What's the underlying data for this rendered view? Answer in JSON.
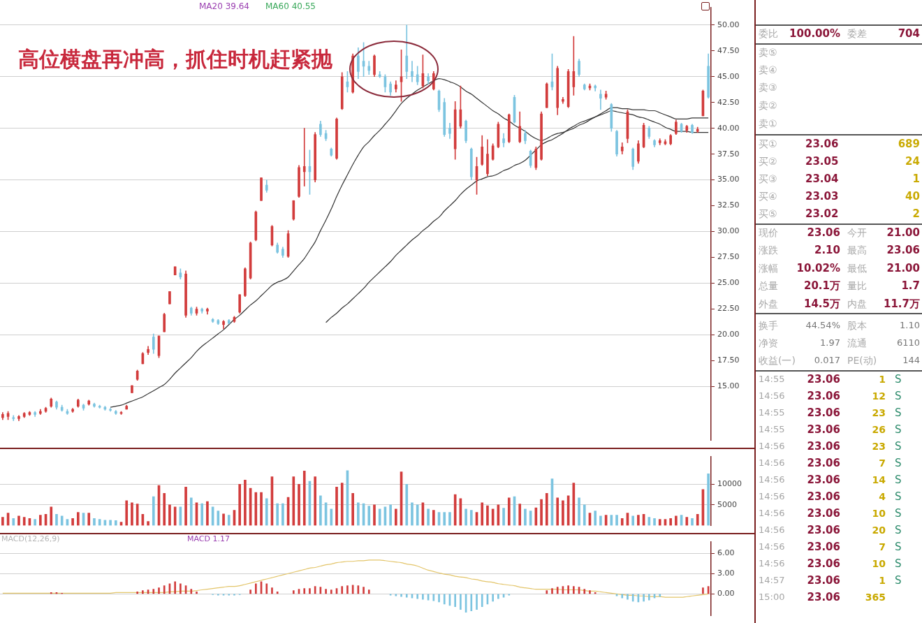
{
  "chart_data": [
    {
      "type": "candlestick",
      "categories": [
        null,
        null,
        null,
        null,
        null,
        null,
        null,
        null,
        null,
        null,
        null,
        null,
        null,
        null,
        null,
        null,
        null,
        null,
        null,
        null,
        null,
        null,
        null,
        null,
        null,
        null,
        null,
        null,
        null,
        null,
        null,
        null,
        null,
        null,
        null,
        null,
        null,
        null,
        null,
        null,
        null,
        null,
        null,
        null,
        null,
        null,
        null,
        null,
        null,
        null,
        null,
        null,
        null,
        null,
        null,
        null,
        null,
        null,
        null,
        null,
        null,
        null,
        null,
        null,
        null,
        null,
        null,
        null,
        null,
        null,
        null,
        null,
        null,
        null,
        null,
        null,
        null,
        null,
        null,
        null,
        null,
        null,
        null,
        null,
        null,
        null,
        null,
        null,
        null,
        null,
        null,
        null,
        null,
        null,
        null,
        null,
        null,
        null,
        null,
        null,
        null,
        null,
        null,
        null,
        null,
        null,
        null,
        null,
        null,
        null,
        null,
        null,
        null,
        null,
        null,
        null,
        null,
        null,
        null,
        null,
        null,
        null,
        null,
        null,
        null,
        null,
        null,
        null,
        null,
        null,
        null,
        null
      ],
      "ohlc": [
        [
          12.0,
          12.5,
          11.8,
          12.3
        ],
        [
          12.1,
          12.6,
          11.8,
          12.4
        ],
        [
          12.0,
          12.2,
          11.7,
          11.9
        ],
        [
          11.9,
          12.2,
          11.7,
          12.1
        ],
        [
          12.1,
          12.5,
          12.0,
          12.4
        ],
        [
          12.3,
          12.6,
          12.2,
          12.5
        ],
        [
          12.5,
          12.6,
          12.1,
          12.3
        ],
        [
          12.4,
          12.8,
          12.3,
          12.6
        ],
        [
          12.6,
          13.0,
          12.5,
          12.9
        ],
        [
          13.1,
          13.9,
          13.0,
          13.8
        ],
        [
          13.5,
          13.6,
          12.8,
          13.0
        ],
        [
          13.0,
          13.2,
          12.6,
          12.7
        ],
        [
          12.6,
          12.8,
          12.3,
          12.4
        ],
        [
          12.6,
          12.9,
          12.5,
          12.8
        ],
        [
          13.1,
          13.8,
          13.0,
          13.7
        ],
        [
          13.2,
          13.3,
          12.7,
          12.9
        ],
        [
          13.3,
          13.7,
          13.2,
          13.6
        ],
        [
          13.3,
          13.4,
          13.0,
          13.1
        ],
        [
          13.1,
          13.2,
          12.9,
          13.0
        ],
        [
          13.0,
          13.1,
          12.7,
          12.8
        ],
        [
          12.8,
          12.9,
          12.6,
          12.7
        ],
        [
          12.6,
          12.7,
          12.3,
          12.4
        ],
        [
          12.4,
          12.6,
          12.3,
          12.5
        ],
        [
          12.8,
          13.2,
          12.8,
          13.1
        ],
        [
          14.4,
          15.1,
          14.4,
          15.1
        ],
        [
          15.7,
          16.6,
          15.6,
          16.5
        ],
        [
          17.2,
          18.3,
          17.2,
          18.2
        ],
        [
          18.3,
          18.9,
          18.1,
          18.6
        ],
        [
          19.8,
          20.1,
          18.2,
          18.6
        ],
        [
          18.0,
          19.9,
          17.8,
          19.9
        ],
        [
          20.3,
          22.1,
          20.3,
          22.0
        ],
        [
          23.0,
          24.2,
          23.0,
          24.2
        ],
        [
          25.8,
          26.6,
          25.8,
          26.6
        ],
        [
          26.0,
          26.4,
          25.4,
          25.6
        ],
        [
          21.9,
          26.2,
          21.7,
          25.9
        ],
        [
          22.6,
          22.7,
          21.9,
          22.1
        ],
        [
          22.1,
          22.7,
          21.9,
          22.5
        ],
        [
          22.5,
          22.6,
          22.1,
          22.3
        ],
        [
          22.3,
          22.6,
          22.0,
          22.5
        ],
        [
          21.5,
          21.6,
          21.2,
          21.3
        ],
        [
          21.4,
          21.5,
          21.0,
          21.1
        ],
        [
          21.0,
          21.4,
          20.6,
          21.3
        ],
        [
          21.4,
          21.5,
          21.1,
          21.1
        ],
        [
          21.3,
          21.8,
          21.2,
          21.7
        ],
        [
          22.2,
          23.9,
          22.1,
          23.9
        ],
        [
          23.8,
          26.5,
          23.7,
          26.4
        ],
        [
          25.5,
          29.0,
          25.4,
          28.9
        ],
        [
          29.2,
          32.0,
          29.1,
          31.9
        ],
        [
          33.0,
          35.2,
          33.0,
          35.2
        ],
        [
          34.5,
          35.0,
          33.8,
          34.0
        ],
        [
          28.7,
          30.6,
          28.6,
          30.5
        ],
        [
          28.7,
          28.9,
          27.9,
          28.0
        ],
        [
          28.3,
          28.5,
          27.5,
          27.7
        ],
        [
          27.6,
          30.1,
          27.5,
          29.8
        ],
        [
          31.2,
          33.0,
          31.1,
          33.0
        ],
        [
          33.4,
          36.4,
          33.3,
          36.2
        ],
        [
          35.8,
          40.0,
          34.4,
          36.3
        ],
        [
          36.3,
          37.9,
          33.6,
          35.8
        ],
        [
          35.0,
          39.6,
          34.8,
          39.4
        ],
        [
          40.4,
          40.7,
          39.2,
          39.4
        ],
        [
          39.5,
          39.8,
          38.8,
          39.0
        ],
        [
          38.0,
          38.1,
          37.3,
          37.4
        ],
        [
          37.1,
          41.0,
          37.0,
          40.9
        ],
        [
          41.9,
          45.4,
          41.8,
          45.0
        ],
        [
          44.5,
          45.5,
          43.5,
          44.0
        ],
        [
          43.5,
          47.2,
          43.4,
          47.0
        ],
        [
          47.0,
          47.8,
          44.8,
          45.5
        ],
        [
          46.5,
          48.3,
          45.0,
          46.0
        ],
        [
          46.0,
          46.5,
          45.2,
          45.6
        ],
        [
          45.2,
          47.1,
          45.0,
          47.0
        ],
        [
          45.2,
          45.5,
          44.9,
          45.0
        ],
        [
          45.0,
          45.2,
          43.5,
          44.0
        ],
        [
          44.3,
          44.5,
          43.2,
          43.5
        ],
        [
          43.8,
          44.6,
          43.5,
          44.2
        ],
        [
          44.5,
          47.6,
          42.6,
          45.0
        ],
        [
          47.0,
          50.0,
          44.8,
          45.5
        ],
        [
          45.5,
          46.5,
          44.5,
          45.0
        ],
        [
          45.2,
          46.0,
          44.2,
          44.5
        ],
        [
          44.1,
          47.1,
          43.9,
          45.3
        ],
        [
          45.0,
          45.3,
          44.3,
          44.6
        ],
        [
          43.8,
          45.5,
          43.7,
          45.3
        ],
        [
          43.6,
          43.7,
          41.6,
          41.8
        ],
        [
          42.5,
          42.9,
          39.2,
          39.4
        ],
        [
          40.0,
          40.5,
          39.0,
          39.5
        ],
        [
          38.0,
          42.6,
          37.0,
          41.8
        ],
        [
          40.2,
          44.1,
          40.0,
          41.8
        ],
        [
          40.7,
          40.8,
          38.6,
          38.8
        ],
        [
          38.0,
          38.1,
          35.0,
          35.3
        ],
        [
          35.0,
          37.2,
          33.6,
          36.3
        ],
        [
          36.5,
          39.3,
          36.4,
          38.2
        ],
        [
          35.6,
          38.9,
          35.4,
          37.5
        ],
        [
          37.0,
          38.5,
          36.9,
          38.3
        ],
        [
          38.2,
          40.6,
          38.1,
          40.4
        ],
        [
          39.0,
          39.5,
          38.2,
          38.6
        ],
        [
          38.7,
          41.4,
          38.6,
          41.3
        ],
        [
          43.0,
          43.2,
          40.5,
          40.6
        ],
        [
          38.7,
          41.6,
          38.6,
          40.2
        ],
        [
          39.5,
          39.8,
          38.5,
          38.8
        ],
        [
          37.8,
          37.9,
          36.2,
          36.4
        ],
        [
          36.2,
          38.2,
          36.0,
          38.0
        ],
        [
          37.0,
          41.6,
          36.9,
          41.4
        ],
        [
          42.0,
          44.4,
          42.0,
          44.3
        ],
        [
          44.5,
          47.2,
          43.7,
          44.0
        ],
        [
          42.0,
          46.0,
          41.3,
          45.8
        ],
        [
          42.6,
          43.0,
          42.4,
          42.8
        ],
        [
          42.1,
          45.7,
          42.0,
          45.5
        ],
        [
          44.0,
          48.9,
          43.2,
          45.5
        ],
        [
          46.5,
          46.7,
          45.0,
          45.2
        ],
        [
          44.2,
          44.3,
          43.7,
          43.8
        ],
        [
          43.9,
          44.3,
          43.7,
          44.1
        ],
        [
          44.1,
          44.2,
          43.6,
          43.9
        ],
        [
          43.3,
          43.7,
          41.8,
          42.9
        ],
        [
          43.0,
          43.6,
          42.8,
          43.3
        ],
        [
          42.3,
          42.4,
          39.7,
          40.0
        ],
        [
          39.7,
          39.8,
          37.3,
          37.5
        ],
        [
          37.8,
          38.6,
          37.5,
          38.2
        ],
        [
          39.0,
          41.8,
          38.6,
          41.6
        ],
        [
          38.0,
          38.1,
          36.0,
          36.3
        ],
        [
          36.8,
          38.8,
          36.6,
          38.5
        ],
        [
          38.2,
          40.5,
          38.1,
          40.3
        ],
        [
          40.0,
          40.2,
          39.0,
          39.2
        ],
        [
          38.8,
          38.9,
          38.2,
          38.4
        ],
        [
          38.6,
          39.0,
          38.4,
          38.8
        ],
        [
          38.5,
          38.9,
          38.4,
          38.7
        ],
        [
          38.5,
          39.4,
          38.4,
          39.3
        ],
        [
          39.5,
          40.8,
          39.4,
          40.6
        ],
        [
          40.4,
          40.5,
          39.6,
          39.7
        ],
        [
          39.8,
          40.3,
          39.6,
          40.2
        ],
        [
          40.3,
          40.4,
          39.5,
          39.6
        ],
        [
          39.7,
          40.1,
          39.6,
          39.9
        ],
        [
          41.2,
          43.7,
          41.2,
          43.6
        ],
        [
          46.0,
          47.2,
          42.9,
          43.0
        ]
      ],
      "colors": [
        "#d23c3c",
        "#d23c3c",
        "#7cc4e0",
        "#d23c3c",
        "#d23c3c",
        "#d23c3c",
        "#7cc4e0",
        "#d23c3c",
        "#d23c3c",
        "#d23c3c",
        "#7cc4e0",
        "#7cc4e0",
        "#7cc4e0",
        "#d23c3c",
        "#d23c3c",
        "#7cc4e0",
        "#d23c3c",
        "#7cc4e0",
        "#7cc4e0",
        "#7cc4e0",
        "#7cc4e0",
        "#7cc4e0",
        "#d23c3c",
        "#d23c3c",
        "#d23c3c",
        "#d23c3c",
        "#d23c3c",
        "#d23c3c",
        "#7cc4e0",
        "#d23c3c",
        "#d23c3c",
        "#d23c3c",
        "#d23c3c",
        "#7cc4e0",
        "#d23c3c",
        "#7cc4e0",
        "#d23c3c",
        "#7cc4e0",
        "#d23c3c",
        "#7cc4e0",
        "#7cc4e0",
        "#d23c3c",
        "#7cc4e0",
        "#d23c3c",
        "#d23c3c",
        "#d23c3c",
        "#d23c3c",
        "#d23c3c",
        "#d23c3c",
        "#7cc4e0",
        "#d23c3c",
        "#7cc4e0",
        "#7cc4e0",
        "#d23c3c",
        "#d23c3c",
        "#d23c3c",
        "#d23c3c",
        "#7cc4e0",
        "#d23c3c",
        "#7cc4e0",
        "#7cc4e0",
        "#7cc4e0",
        "#d23c3c",
        "#d23c3c",
        "#7cc4e0",
        "#d23c3c",
        "#7cc4e0",
        "#7cc4e0",
        "#7cc4e0",
        "#d23c3c",
        "#7cc4e0",
        "#7cc4e0",
        "#7cc4e0",
        "#d23c3c",
        "#d23c3c",
        "#7cc4e0",
        "#7cc4e0",
        "#7cc4e0",
        "#d23c3c",
        "#7cc4e0",
        "#d23c3c",
        "#7cc4e0",
        "#7cc4e0",
        "#7cc4e0",
        "#d23c3c",
        "#d23c3c",
        "#7cc4e0",
        "#7cc4e0",
        "#d23c3c",
        "#d23c3c",
        "#d23c3c",
        "#d23c3c",
        "#d23c3c",
        "#7cc4e0",
        "#d23c3c",
        "#7cc4e0",
        "#d23c3c",
        "#7cc4e0",
        "#7cc4e0",
        "#d23c3c",
        "#d23c3c",
        "#d23c3c",
        "#7cc4e0",
        "#d23c3c",
        "#d23c3c",
        "#d23c3c",
        "#d23c3c",
        "#7cc4e0",
        "#7cc4e0",
        "#d23c3c",
        "#7cc4e0",
        "#7cc4e0",
        "#d23c3c",
        "#7cc4e0",
        "#7cc4e0",
        "#d23c3c",
        "#d23c3c",
        "#7cc4e0",
        "#d23c3c",
        "#d23c3c",
        "#7cc4e0",
        "#7cc4e0",
        "#d23c3c",
        "#d23c3c",
        "#d23c3c",
        "#d23c3c",
        "#7cc4e0",
        "#d23c3c",
        "#7cc4e0",
        "#d23c3c",
        "#d23c3c",
        "#7cc4e0"
      ],
      "series": [
        {
          "type": "line",
          "color": "#333333",
          "values": [
            null,
            null,
            null,
            null,
            null,
            null,
            null,
            null,
            null,
            null,
            null,
            null,
            null,
            null,
            null,
            null,
            null,
            null,
            null,
            null,
            13.0,
            13.1,
            13.2,
            13.4,
            13.6,
            13.8,
            14.0,
            14.3,
            14.6,
            14.9,
            15.2,
            15.7,
            16.3,
            16.8,
            17.3,
            17.8,
            18.4,
            18.9,
            19.3,
            19.7,
            20.1,
            20.5,
            21.0,
            21.5,
            21.9,
            22.4,
            22.9,
            23.3,
            23.8,
            24.3,
            24.8,
            25.1,
            25.3,
            25.6,
            26.2,
            26.8,
            27.4,
            28.2,
            29.0,
            30.1,
            31.1,
            32.2,
            33.4,
            34.5,
            35.5,
            36.5,
            37.4,
            38.2,
            38.7,
            39.3,
            39.8,
            40.4,
            41.0,
            41.7,
            42.4,
            42.9,
            43.3,
            43.7,
            44.0,
            44.3,
            44.6,
            44.8,
            44.7,
            44.5,
            44.3,
            44.0,
            43.6,
            43.3,
            42.9,
            42.5,
            42.1,
            41.7,
            41.4,
            41.0,
            40.7,
            40.3,
            40.0,
            39.7,
            39.3,
            39.0,
            38.8,
            39.0,
            39.3,
            39.5,
            39.6,
            39.8,
            40.0,
            40.3,
            40.5,
            40.8,
            41.1,
            41.4,
            41.7,
            42.0,
            42.0,
            41.9,
            41.9,
            41.8,
            41.8,
            41.8,
            41.7,
            41.7,
            41.5,
            41.3,
            41.1,
            40.9,
            40.9,
            40.9,
            41.0,
            41.0,
            41.0,
            41.0
          ]
        },
        {
          "type": "line",
          "color": "#333333",
          "values": [
            null,
            null,
            null,
            null,
            null,
            null,
            null,
            null,
            null,
            null,
            null,
            null,
            null,
            null,
            null,
            null,
            null,
            null,
            null,
            null,
            null,
            null,
            null,
            null,
            null,
            null,
            null,
            null,
            null,
            null,
            null,
            null,
            null,
            null,
            null,
            null,
            null,
            null,
            null,
            null,
            null,
            null,
            null,
            null,
            null,
            null,
            null,
            null,
            null,
            null,
            null,
            null,
            null,
            null,
            null,
            null,
            null,
            null,
            null,
            null,
            21.2,
            21.7,
            22.1,
            22.6,
            23.0,
            23.5,
            24.0,
            24.5,
            25.1,
            25.6,
            26.1,
            26.6,
            27.1,
            27.7,
            28.2,
            28.7,
            29.2,
            29.6,
            30.1,
            30.5,
            31.0,
            31.4,
            32.0,
            32.5,
            33.0,
            33.6,
            34.1,
            34.5,
            34.9,
            35.1,
            35.3,
            35.4,
            35.6,
            35.9,
            36.1,
            36.4,
            36.6,
            36.9,
            37.4,
            37.9,
            38.4,
            38.7,
            38.9,
            39.2,
            39.5,
            39.9,
            40.2,
            40.5,
            40.7,
            40.9,
            41.1,
            41.3,
            41.5,
            41.7,
            41.6,
            41.5,
            41.4,
            41.3,
            41.1,
            41.0,
            40.8,
            40.6,
            40.4,
            40.1,
            39.9,
            39.7,
            39.7,
            39.7,
            39.6,
            39.6,
            39.6,
            39.6
          ]
        }
      ],
      "ylim": [
        9.8,
        51.7
      ],
      "yticks": [
        {
          "value": 15,
          "label": "15.00"
        },
        {
          "value": 17.5,
          "label": "17.50"
        },
        {
          "value": 20,
          "label": "20.00"
        },
        {
          "value": 22.5,
          "label": "22.50"
        },
        {
          "value": 25,
          "label": "25.00"
        },
        {
          "value": 27.5,
          "label": "27.50"
        },
        {
          "value": 30,
          "label": "30.00"
        },
        {
          "value": 32.5,
          "label": "32.50"
        },
        {
          "value": 35,
          "label": "35.00"
        },
        {
          "value": 37.5,
          "label": "37.50"
        },
        {
          "value": 40,
          "label": "40.00"
        },
        {
          "value": 42.5,
          "label": "42.50"
        },
        {
          "value": 45,
          "label": "45.00"
        },
        {
          "value": 47.5,
          "label": "47.50"
        },
        {
          "value": 50,
          "label": "50.00"
        }
      ],
      "grid": "y",
      "tick_labels": "y",
      "annotations": [
        "高位横盘再冲高，抓住时机赶紧抛",
        "MA20 39.64",
        "MA60 40.55"
      ]
    },
    {
      "type": "bar",
      "categories": [
        null,
        null,
        null,
        null,
        null,
        null,
        null,
        null,
        null,
        null,
        null,
        null,
        null,
        null,
        null,
        null,
        null,
        null,
        null,
        null,
        null,
        null,
        null,
        null,
        null,
        null,
        null,
        null,
        null,
        null,
        null,
        null,
        null,
        null,
        null,
        null,
        null,
        null,
        null,
        null,
        null,
        null,
        null,
        null,
        null,
        null,
        null,
        null,
        null,
        null,
        null,
        null,
        null,
        null,
        null,
        null,
        null,
        null,
        null,
        null,
        null,
        null,
        null,
        null,
        null,
        null,
        null,
        null,
        null,
        null,
        null,
        null,
        null,
        null,
        null,
        null,
        null,
        null,
        null,
        null,
        null,
        null,
        null,
        null,
        null,
        null,
        null,
        null,
        null,
        null,
        null,
        null,
        null,
        null,
        null,
        null,
        null,
        null,
        null,
        null,
        null,
        null,
        null,
        null,
        null,
        null,
        null,
        null,
        null,
        null,
        null,
        null,
        null,
        null,
        null,
        null,
        null,
        null,
        null,
        null,
        null,
        null,
        null,
        null,
        null,
        null,
        null,
        null,
        null,
        null,
        null,
        null
      ],
      "values": [
        2000,
        3000,
        1700,
        2300,
        2000,
        1700,
        1500,
        2500,
        2700,
        4500,
        2700,
        2300,
        1500,
        1700,
        3200,
        3000,
        3000,
        1700,
        1500,
        1300,
        1300,
        1200,
        800,
        6000,
        5500,
        5200,
        2700,
        1000,
        7000,
        9700,
        7800,
        5000,
        4500,
        4500,
        9300,
        6700,
        5500,
        5300,
        5800,
        4500,
        3500,
        2800,
        2500,
        3700,
        10000,
        11000,
        9000,
        8000,
        8000,
        6500,
        11800,
        5300,
        5300,
        6800,
        11800,
        10000,
        13200,
        10700,
        11800,
        7200,
        5500,
        4000,
        9300,
        10300,
        13300,
        7800,
        5500,
        5300,
        4700,
        5000,
        4000,
        4500,
        5000,
        4000,
        13000,
        10000,
        5500,
        5000,
        5500,
        4000,
        3700,
        3200,
        3200,
        3200,
        7500,
        6500,
        4000,
        3700,
        3200,
        5500,
        4800,
        4000,
        5000,
        4200,
        6700,
        7000,
        5200,
        4000,
        3500,
        4300,
        6300,
        7800,
        11300,
        6700,
        6000,
        7200,
        10300,
        6700,
        5000,
        3000,
        3500,
        2300,
        2500,
        2500,
        2500,
        1700,
        3000,
        2300,
        2500,
        2700,
        2000,
        1700,
        1500,
        1500,
        1700,
        2300,
        2500,
        2000,
        1700,
        2700,
        8700,
        12500
      ],
      "colors": [
        "#d23c3c",
        "#d23c3c",
        "#7cc4e0",
        "#d23c3c",
        "#d23c3c",
        "#d23c3c",
        "#7cc4e0",
        "#d23c3c",
        "#d23c3c",
        "#d23c3c",
        "#7cc4e0",
        "#7cc4e0",
        "#7cc4e0",
        "#d23c3c",
        "#d23c3c",
        "#7cc4e0",
        "#d23c3c",
        "#7cc4e0",
        "#7cc4e0",
        "#7cc4e0",
        "#7cc4e0",
        "#7cc4e0",
        "#d23c3c",
        "#d23c3c",
        "#d23c3c",
        "#d23c3c",
        "#d23c3c",
        "#d23c3c",
        "#7cc4e0",
        "#d23c3c",
        "#d23c3c",
        "#d23c3c",
        "#d23c3c",
        "#7cc4e0",
        "#d23c3c",
        "#7cc4e0",
        "#d23c3c",
        "#7cc4e0",
        "#d23c3c",
        "#7cc4e0",
        "#7cc4e0",
        "#d23c3c",
        "#7cc4e0",
        "#d23c3c",
        "#d23c3c",
        "#d23c3c",
        "#d23c3c",
        "#d23c3c",
        "#d23c3c",
        "#7cc4e0",
        "#d23c3c",
        "#7cc4e0",
        "#7cc4e0",
        "#d23c3c",
        "#d23c3c",
        "#d23c3c",
        "#d23c3c",
        "#7cc4e0",
        "#d23c3c",
        "#7cc4e0",
        "#7cc4e0",
        "#7cc4e0",
        "#d23c3c",
        "#d23c3c",
        "#7cc4e0",
        "#d23c3c",
        "#7cc4e0",
        "#7cc4e0",
        "#7cc4e0",
        "#d23c3c",
        "#7cc4e0",
        "#7cc4e0",
        "#7cc4e0",
        "#d23c3c",
        "#d23c3c",
        "#7cc4e0",
        "#7cc4e0",
        "#7cc4e0",
        "#d23c3c",
        "#7cc4e0",
        "#d23c3c",
        "#7cc4e0",
        "#7cc4e0",
        "#7cc4e0",
        "#d23c3c",
        "#d23c3c",
        "#7cc4e0",
        "#7cc4e0",
        "#d23c3c",
        "#d23c3c",
        "#d23c3c",
        "#d23c3c",
        "#d23c3c",
        "#7cc4e0",
        "#d23c3c",
        "#7cc4e0",
        "#d23c3c",
        "#7cc4e0",
        "#7cc4e0",
        "#d23c3c",
        "#d23c3c",
        "#d23c3c",
        "#7cc4e0",
        "#d23c3c",
        "#d23c3c",
        "#d23c3c",
        "#d23c3c",
        "#7cc4e0",
        "#7cc4e0",
        "#d23c3c",
        "#7cc4e0",
        "#7cc4e0",
        "#d23c3c",
        "#7cc4e0",
        "#7cc4e0",
        "#d23c3c",
        "#d23c3c",
        "#7cc4e0",
        "#d23c3c",
        "#d23c3c",
        "#7cc4e0",
        "#7cc4e0",
        "#d23c3c",
        "#d23c3c",
        "#d23c3c",
        "#d23c3c",
        "#7cc4e0",
        "#d23c3c",
        "#7cc4e0",
        "#d23c3c",
        "#d23c3c",
        "#7cc4e0"
      ],
      "ylim": [
        0,
        16700
      ],
      "yticks": [
        5000,
        10000
      ],
      "grid": "y",
      "tick_labels": "y"
    },
    {
      "type": "bar",
      "stacked": true,
      "categories": [
        null,
        null,
        null,
        null,
        null,
        null,
        null,
        null,
        null,
        null,
        null,
        null,
        null,
        null,
        null,
        null,
        null,
        null,
        null,
        null,
        null,
        null,
        null,
        null,
        null,
        null,
        null,
        null,
        null,
        null,
        null,
        null,
        null,
        null,
        null,
        null,
        null,
        null,
        null,
        null,
        null,
        null,
        null,
        null,
        null,
        null,
        null,
        null,
        null,
        null,
        null,
        null,
        null,
        null,
        null,
        null,
        null,
        null,
        null,
        null,
        null,
        null,
        null,
        null,
        null,
        null,
        null,
        null,
        null,
        null,
        null,
        null,
        null,
        null,
        null,
        null,
        null,
        null,
        null,
        null,
        null,
        null,
        null,
        null,
        null,
        null,
        null,
        null,
        null,
        null,
        null,
        null,
        null,
        null,
        null,
        null,
        null,
        null,
        null,
        null,
        null,
        null,
        null,
        null,
        null,
        null,
        null,
        null,
        null,
        null,
        null,
        null,
        null,
        null,
        null,
        null,
        null,
        null,
        null,
        null,
        null,
        null,
        null,
        null,
        null,
        null,
        null,
        null,
        null,
        null,
        null,
        null
      ],
      "series": [
        {
          "color": "#d23c3c",
          "values": [
            null,
            null,
            null,
            null,
            null,
            null,
            null,
            null,
            null,
            0.2,
            0.2,
            0.1,
            null,
            null,
            null,
            null,
            null,
            null,
            null,
            null,
            null,
            null,
            null,
            null,
            null,
            0.3,
            0.5,
            0.6,
            0.7,
            0.9,
            1.2,
            1.5,
            1.8,
            1.5,
            1.2,
            0.7,
            0.3,
            null,
            null,
            null,
            null,
            null,
            null,
            null,
            null,
            null,
            0.6,
            1.5,
            1.8,
            1.5,
            0.9,
            0.3,
            null,
            null,
            0.5,
            0.7,
            0.8,
            0.8,
            1.1,
            1.0,
            0.7,
            0.6,
            0.8,
            1.1,
            1.2,
            1.3,
            1.2,
            1.0,
            0.6,
            null,
            null,
            null,
            null,
            null,
            null,
            null,
            null,
            null,
            null,
            null,
            null,
            null,
            null,
            null,
            null,
            null,
            null,
            null,
            null,
            null,
            null,
            null,
            null,
            null,
            null,
            null,
            null,
            null,
            null,
            null,
            null,
            0.5,
            0.8,
            1.0,
            1.1,
            1.2,
            1.1,
            1.0,
            0.7,
            0.5,
            0.2,
            null,
            null,
            null,
            null,
            null,
            null,
            null,
            null,
            null,
            null,
            null,
            null,
            null,
            null,
            null,
            null,
            null,
            null,
            null,
            0.9,
            1.1
          ]
        },
        {
          "color": "#7cc4e0",
          "values": [
            null,
            null,
            null,
            null,
            null,
            null,
            null,
            null,
            null,
            null,
            null,
            null,
            null,
            null,
            null,
            null,
            null,
            null,
            null,
            null,
            null,
            null,
            null,
            null,
            null,
            null,
            null,
            null,
            null,
            null,
            null,
            null,
            null,
            null,
            null,
            null,
            null,
            null,
            null,
            -0.1,
            -0.2,
            -0.2,
            -0.2,
            -0.2,
            -0.1,
            null,
            null,
            null,
            null,
            null,
            null,
            null,
            null,
            null,
            null,
            null,
            null,
            null,
            null,
            null,
            null,
            null,
            null,
            null,
            null,
            null,
            null,
            null,
            null,
            null,
            null,
            null,
            -0.2,
            -0.3,
            -0.4,
            -0.5,
            -0.6,
            -0.7,
            -0.8,
            -0.9,
            -1.0,
            -1.2,
            -1.5,
            -1.7,
            -1.9,
            -2.3,
            -2.7,
            -2.5,
            -2.3,
            -1.9,
            -1.5,
            -1.1,
            -0.7,
            -0.5,
            -0.2,
            null,
            null,
            null,
            null,
            null,
            null,
            null,
            null,
            null,
            null,
            null,
            null,
            null,
            null,
            null,
            null,
            null,
            null,
            null,
            -0.3,
            -0.6,
            -0.8,
            -1.1,
            -1.2,
            -1.1,
            -0.9,
            -0.6,
            -0.4,
            null,
            null,
            null,
            null,
            null,
            null,
            null,
            null,
            null
          ]
        },
        {
          "type": "line",
          "color": "#e3c56a",
          "values": [
            0.1,
            0.1,
            0.1,
            0.1,
            0.1,
            0.1,
            0.1,
            0.1,
            0.1,
            0.1,
            0.1,
            0.1,
            0.1,
            0.1,
            0.1,
            0.1,
            0.1,
            0.1,
            0.1,
            0.1,
            0.1,
            0.2,
            0.2,
            0.2,
            0.2,
            0.2,
            0.2,
            0.2,
            0.2,
            0.2,
            0.2,
            0.3,
            0.3,
            0.4,
            0.4,
            0.4,
            0.5,
            0.6,
            0.7,
            0.8,
            0.9,
            1.0,
            1.1,
            1.1,
            1.2,
            1.4,
            1.6,
            1.8,
            2.0,
            2.2,
            2.4,
            2.6,
            2.8,
            3.0,
            3.2,
            3.4,
            3.6,
            3.8,
            3.9,
            4.1,
            4.3,
            4.4,
            4.6,
            4.7,
            4.8,
            4.8,
            4.9,
            4.9,
            5.0,
            5.0,
            5.0,
            4.9,
            4.8,
            4.7,
            4.6,
            4.4,
            4.3,
            4.1,
            3.8,
            3.5,
            3.3,
            3.1,
            2.9,
            2.8,
            2.6,
            2.5,
            2.4,
            2.2,
            2.1,
            1.9,
            1.8,
            1.7,
            1.5,
            1.4,
            1.3,
            1.2,
            1.0,
            0.9,
            0.8,
            0.7,
            0.7,
            0.7,
            0.7,
            0.7,
            0.6,
            0.6,
            0.6,
            0.6,
            0.5,
            0.4,
            0.4,
            0.3,
            0.2,
            0.1,
            0.0,
            -0.1,
            -0.2,
            -0.2,
            -0.3,
            -0.3,
            -0.4,
            -0.4,
            -0.4,
            -0.5,
            -0.5,
            -0.5,
            -0.5,
            -0.4,
            -0.3,
            -0.2,
            -0.1,
            0.0
          ]
        }
      ],
      "ylim": [
        -3.2,
        7.7
      ],
      "yticks": [
        {
          "value": 0,
          "label": "0.00"
        },
        {
          "value": 3,
          "label": "3.00"
        },
        {
          "value": 6,
          "label": "6.00"
        }
      ],
      "grid": "y",
      "tick_labels": "y",
      "annotations": [
        "MACD(12,26,9)",
        "MACD 1.17"
      ]
    },
    {
      "type": "other",
      "annotations": [
        "委比",
        "100.00%",
        "委差",
        "704",
        "卖⑤",
        "卖④",
        "卖③",
        "卖②",
        "卖①",
        "买①",
        "23.06",
        "689",
        "买②",
        "23.05",
        "24",
        "买③",
        "23.04",
        "1",
        "买④",
        "23.03",
        "40",
        "买⑤",
        "23.02",
        "2",
        "现价",
        "23.06",
        "今开",
        "21.00",
        "涨跌",
        "2.10",
        "最高",
        "23.06",
        "涨幅",
        "10.02%",
        "最低",
        "21.00",
        "总量",
        "20.1万",
        "量比",
        "1.7",
        "外盘",
        "14.5万",
        "内盘",
        "11.7万",
        "换手",
        "44.54%",
        "股本",
        "1.10",
        "净资",
        "1.97",
        "流通",
        "6110",
        "收益(一)",
        "0.017",
        "PE(动)",
        "144",
        "14:55",
        "23.06",
        "1",
        "S",
        "14:56",
        "23.06",
        "12",
        "S",
        "14:55",
        "23.06",
        "23",
        "S",
        "14:55",
        "23.06",
        "26",
        "S",
        "14:56",
        "23.06",
        "23",
        "S",
        "14:56",
        "23.06",
        "7",
        "S",
        "14:56",
        "23.06",
        "14",
        "S",
        "14:56",
        "23.06",
        "4",
        "S",
        "14:56",
        "23.06",
        "10",
        "S",
        "14:56",
        "23.06",
        "20",
        "S",
        "14:56",
        "23.06",
        "7",
        "S",
        "14:56",
        "23.06",
        "10",
        "S",
        "14:57",
        "23.06",
        "1",
        "S",
        "15:00",
        "23.06",
        "365"
      ]
    }
  ]
}
